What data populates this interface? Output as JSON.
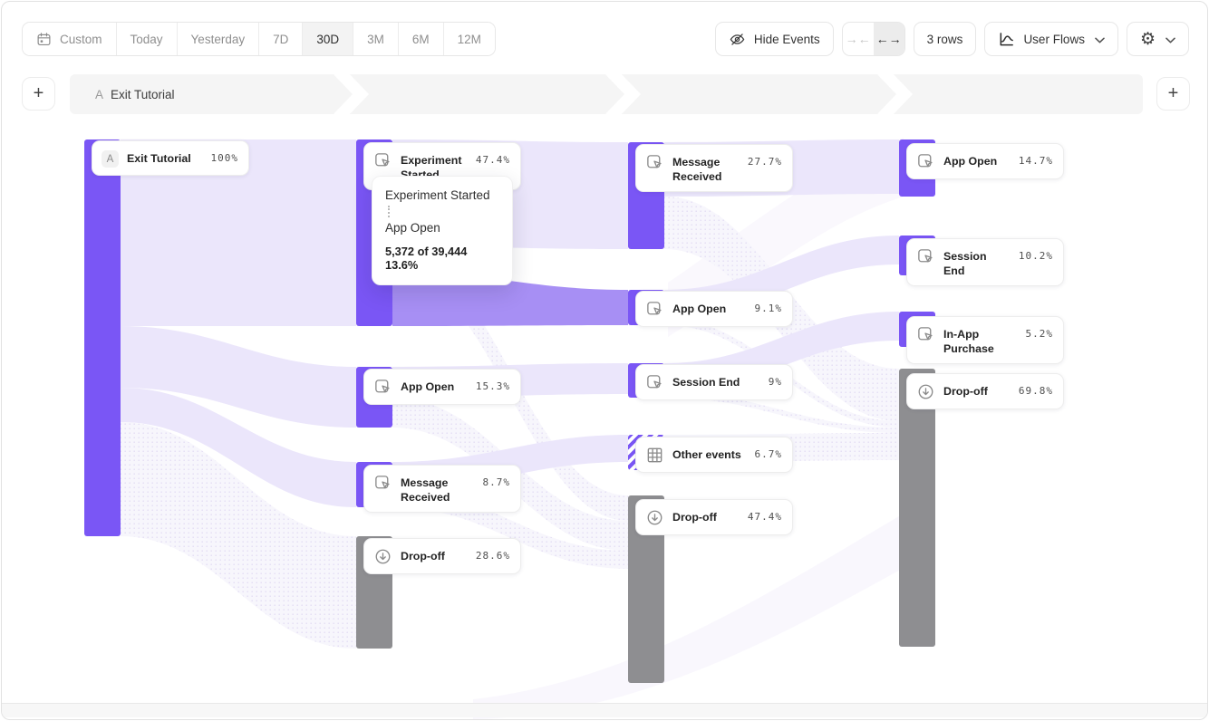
{
  "toolbar": {
    "date_ranges": [
      {
        "label": "Custom",
        "icon": "calendar-icon",
        "active": false
      },
      {
        "label": "Today",
        "active": false
      },
      {
        "label": "Yesterday",
        "active": false
      },
      {
        "label": "7D",
        "active": false
      },
      {
        "label": "30D",
        "active": true
      },
      {
        "label": "3M",
        "active": false
      },
      {
        "label": "6M",
        "active": false
      },
      {
        "label": "12M",
        "active": false
      }
    ],
    "hide_events_label": "Hide Events",
    "rows_label": "3 rows",
    "view_selector_label": "User Flows"
  },
  "steps_bar": {
    "segment_badge": "A",
    "segment_label": "Exit Tutorial",
    "add_button_label": "+"
  },
  "sankey": {
    "columns": [
      {
        "nodes": [
          {
            "badge": "A",
            "label": "Exit Tutorial",
            "value": "100%",
            "kind": "start"
          }
        ]
      },
      {
        "nodes": [
          {
            "label": "Experiment Started",
            "value": "47.4%",
            "kind": "event",
            "icon": "cursor-click-icon"
          },
          {
            "label": "App Open",
            "value": "15.3%",
            "kind": "event",
            "icon": "cursor-click-icon"
          },
          {
            "label": "Message Received",
            "value": "8.7%",
            "kind": "event",
            "icon": "cursor-click-icon"
          },
          {
            "label": "Drop-off",
            "value": "28.6%",
            "kind": "dropoff",
            "icon": "arrow-down-circle-icon"
          }
        ]
      },
      {
        "nodes": [
          {
            "label": "Message Received",
            "value": "27.7%",
            "kind": "event",
            "icon": "cursor-click-icon"
          },
          {
            "label": "App Open",
            "value": "9.1%",
            "kind": "event",
            "icon": "cursor-click-icon"
          },
          {
            "label": "Session End",
            "value": "9%",
            "kind": "event",
            "icon": "cursor-click-icon"
          },
          {
            "label": "Other events",
            "value": "6.7%",
            "kind": "other",
            "icon": "grid-icon"
          },
          {
            "label": "Drop-off",
            "value": "47.4%",
            "kind": "dropoff",
            "icon": "arrow-down-circle-icon"
          }
        ]
      },
      {
        "nodes": [
          {
            "label": "App Open",
            "value": "14.7%",
            "kind": "event",
            "icon": "cursor-click-icon"
          },
          {
            "label": "Session End",
            "value": "10.2%",
            "kind": "event",
            "icon": "cursor-click-icon"
          },
          {
            "label": "In-App Purchase",
            "value": "5.2%",
            "kind": "event",
            "icon": "cursor-click-icon"
          },
          {
            "label": "Drop-off",
            "value": "69.8%",
            "kind": "dropoff",
            "icon": "arrow-down-circle-icon"
          }
        ]
      }
    ]
  },
  "tooltip": {
    "source": "Experiment Started",
    "target": "App Open",
    "stat": "5,372 of 39,444 13.6%"
  },
  "colors": {
    "node_purple": "#7a56f5",
    "node_gray": "#8e8e91",
    "flow_light": "#ebe6fb",
    "flow_highlight": "#a78ff4",
    "steps_bar_bg": "#f5f5f5",
    "active_tab_bg": "#f3f3f3"
  }
}
